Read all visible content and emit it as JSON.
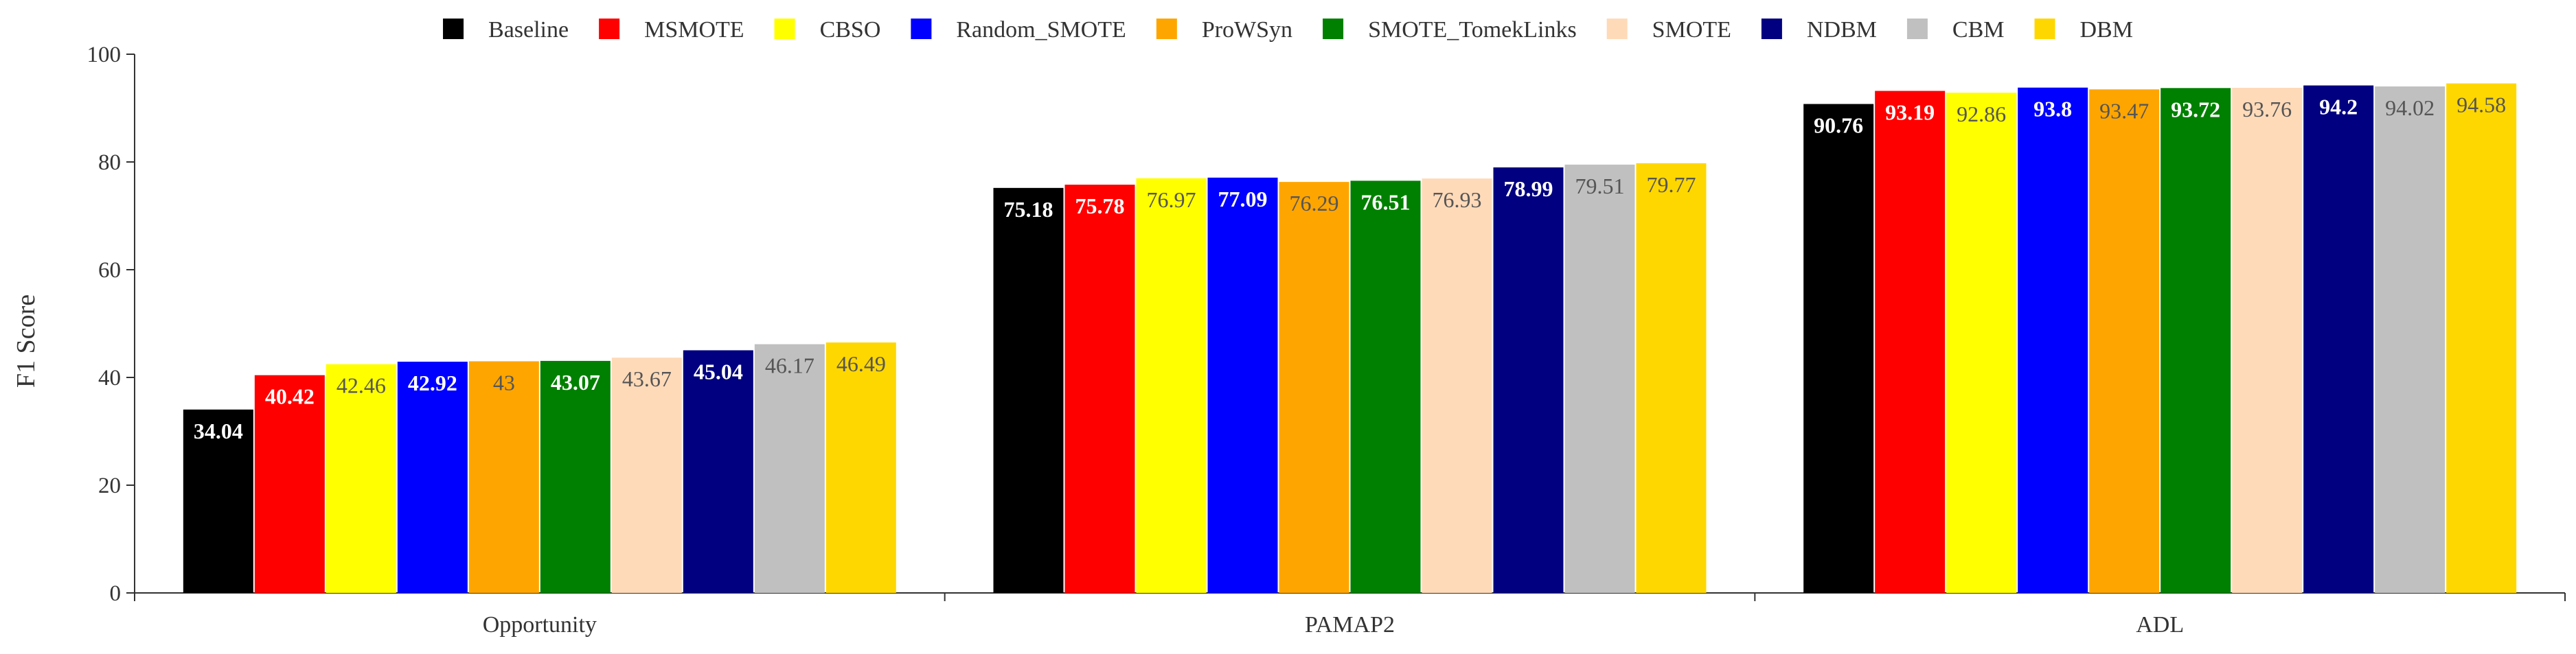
{
  "chart_data": {
    "type": "bar",
    "title": "",
    "xlabel": "",
    "ylabel": "F1 Score",
    "ylim": [
      0,
      100
    ],
    "yticks": [
      0,
      20,
      40,
      60,
      80,
      100
    ],
    "grid": false,
    "legend_position": "top",
    "categories": [
      "Opportunity",
      "PAMAP2",
      "ADL"
    ],
    "series": [
      {
        "name": "Baseline",
        "color": "#000000",
        "label_color": "#ffffff",
        "values": [
          34.04,
          75.18,
          90.76
        ]
      },
      {
        "name": "MSMOTE",
        "color": "#ff0000",
        "label_color": "#ffffff",
        "values": [
          40.42,
          75.78,
          93.19
        ]
      },
      {
        "name": "CBSO",
        "color": "#ffff00",
        "label_color": "#555555",
        "values": [
          42.46,
          76.97,
          92.86
        ]
      },
      {
        "name": "Random_SMOTE",
        "color": "#0000ff",
        "label_color": "#ffffff",
        "values": [
          42.92,
          77.09,
          93.8
        ]
      },
      {
        "name": "ProWSyn",
        "color": "#ffa500",
        "label_color": "#555555",
        "values": [
          43,
          76.29,
          93.47
        ]
      },
      {
        "name": "SMOTE_TomekLinks",
        "color": "#008000",
        "label_color": "#ffffff",
        "values": [
          43.07,
          76.51,
          93.72
        ]
      },
      {
        "name": "SMOTE",
        "color": "#ffdab9",
        "label_color": "#555555",
        "values": [
          43.67,
          76.93,
          93.76
        ]
      },
      {
        "name": "NDBM",
        "color": "#000080",
        "label_color": "#ffffff",
        "values": [
          45.04,
          78.99,
          94.2
        ]
      },
      {
        "name": "CBM",
        "color": "#c0c0c0",
        "label_color": "#555555",
        "values": [
          46.17,
          79.51,
          94.02
        ]
      },
      {
        "name": "DBM",
        "color": "#ffd700",
        "label_color": "#555555",
        "values": [
          46.49,
          79.77,
          94.58
        ]
      }
    ]
  }
}
